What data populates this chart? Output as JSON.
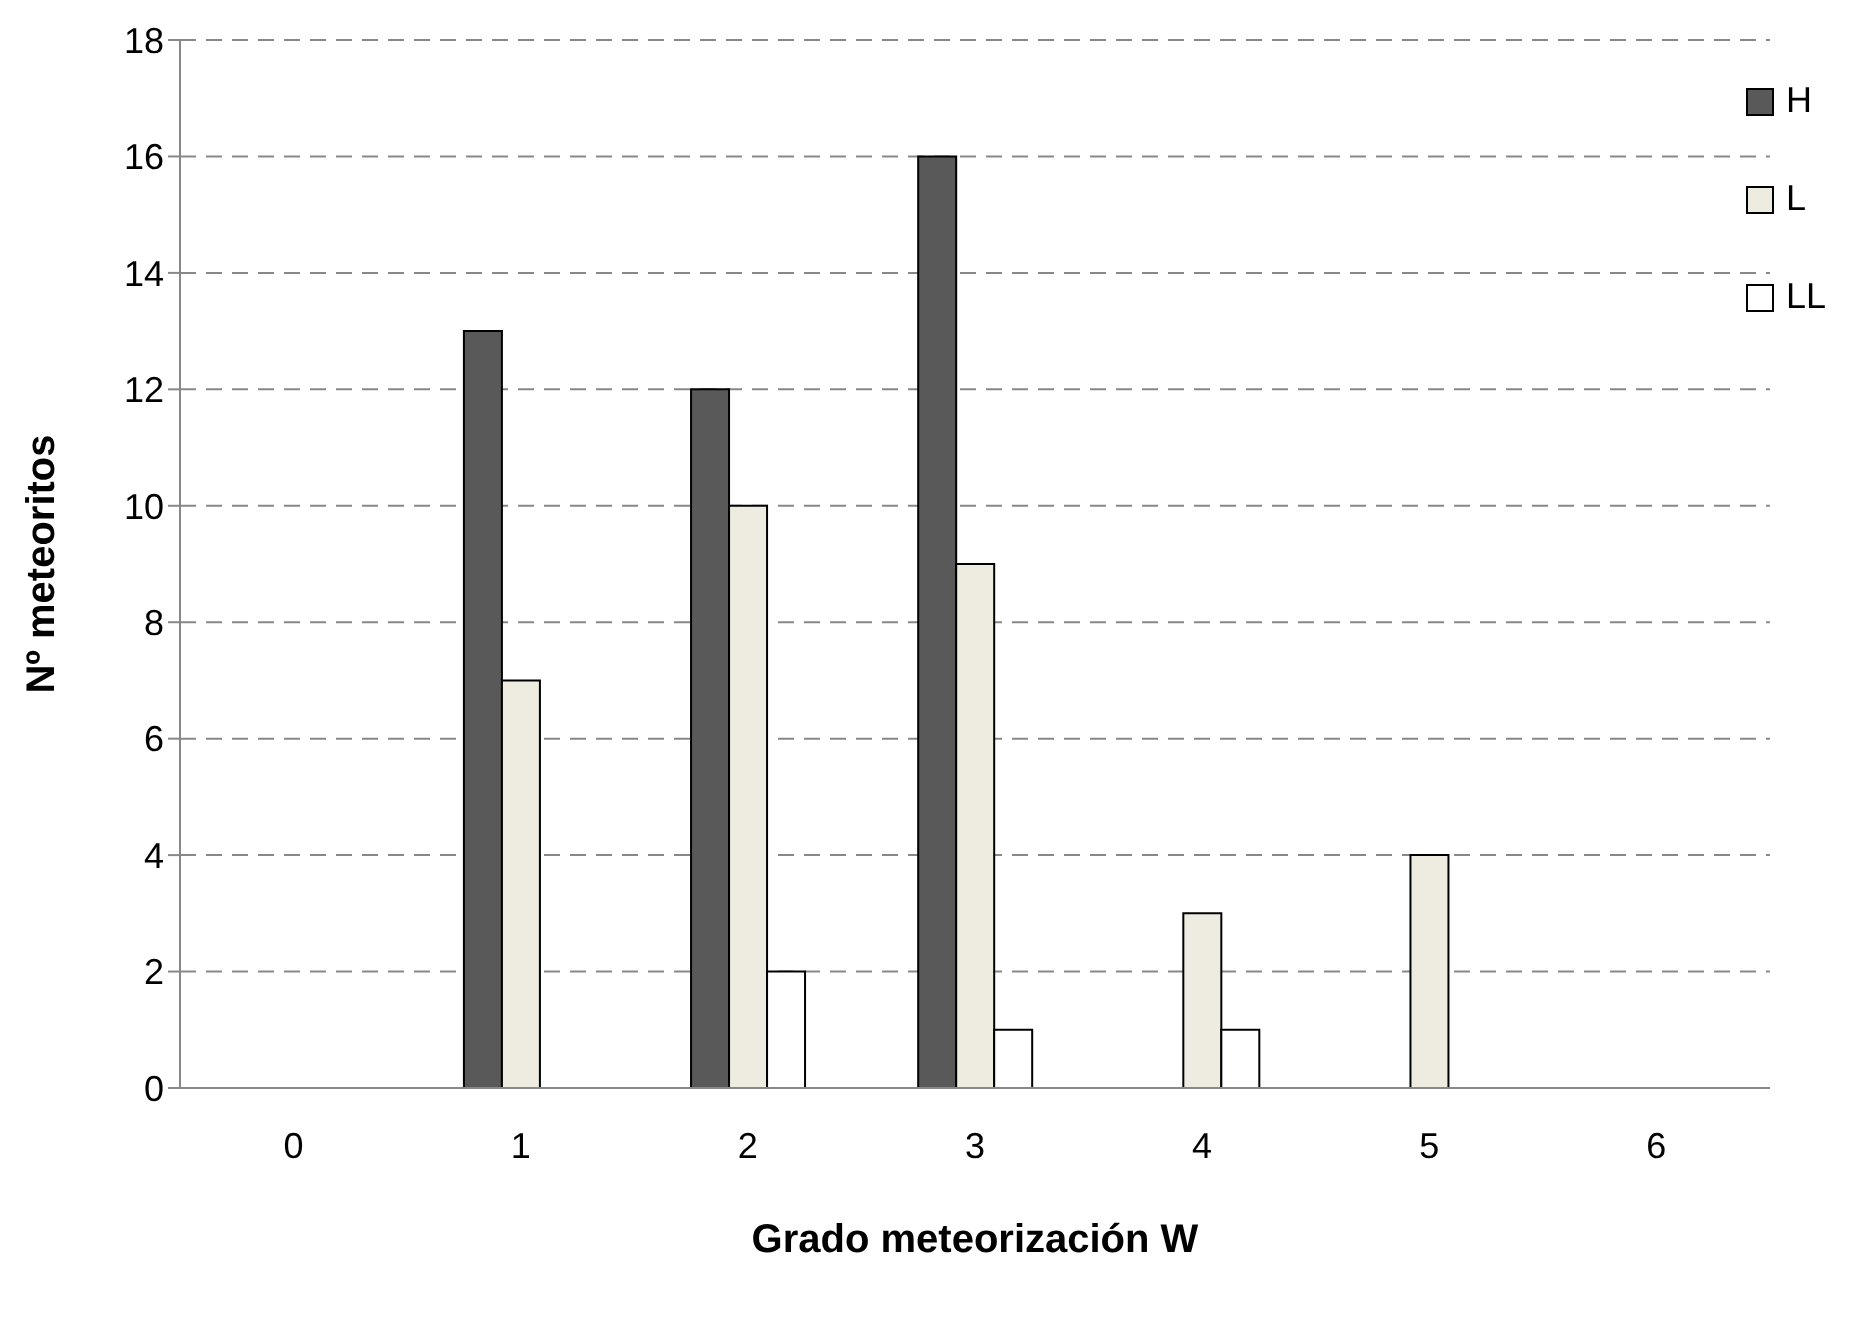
{
  "chart_data": {
    "type": "bar",
    "xlabel": "Grado meteorización W",
    "ylabel": "Nº meteoritos",
    "categories": [
      "0",
      "1",
      "2",
      "3",
      "4",
      "5",
      "6"
    ],
    "series": [
      {
        "name": "H",
        "color": "#595959",
        "values": [
          0,
          13,
          12,
          16,
          0,
          0,
          0
        ]
      },
      {
        "name": "L",
        "color": "#eeece1",
        "values": [
          0,
          7,
          10,
          9,
          3,
          4,
          0
        ]
      },
      {
        "name": "LL",
        "color": "#ffffff",
        "values": [
          0,
          0,
          2,
          1,
          1,
          0,
          0
        ]
      }
    ],
    "ylim": [
      0,
      18
    ],
    "yticks": [
      0,
      2,
      4,
      6,
      8,
      10,
      12,
      14,
      16,
      18
    ],
    "grid": "y",
    "legend": "top right"
  }
}
